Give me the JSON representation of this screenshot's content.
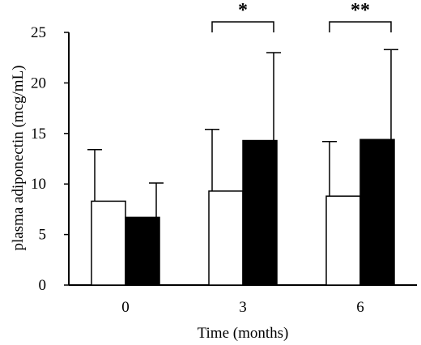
{
  "chart_data": {
    "type": "bar",
    "categories": [
      "0",
      "3",
      "6"
    ],
    "xlabel": "Time (months)",
    "ylabel": "plasma adiponectin (mcg/mL)",
    "ylim": [
      0,
      25
    ],
    "yticks": [
      "0",
      "5",
      "10",
      "15",
      "20",
      "25"
    ],
    "grid": false,
    "legend": "none",
    "series": [
      {
        "fill": "#ffffff",
        "values": [
          8.3,
          9.3,
          8.8
        ],
        "errors": [
          5.1,
          6.1,
          5.4
        ]
      },
      {
        "fill": "#000000",
        "values": [
          6.7,
          14.3,
          14.4
        ],
        "errors": [
          3.4,
          8.7,
          8.9
        ]
      }
    ],
    "annotations": [
      {
        "category": "3",
        "text": "*"
      },
      {
        "category": "6",
        "text": "**"
      }
    ]
  }
}
